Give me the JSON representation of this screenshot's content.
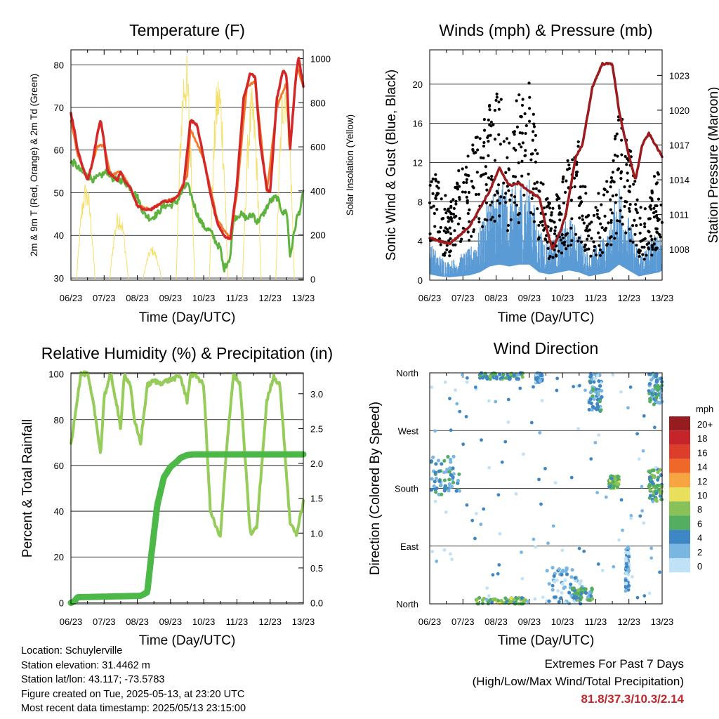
{
  "colors": {
    "temp": "#d42728",
    "temp9m": "#f47a2b",
    "dew": "#5db33e",
    "solar": "#f5e06a",
    "wind": "#5b9bd5",
    "gust": "#000000",
    "pressure": "#9b1b1e",
    "rh": "#96cc5a",
    "precip": "#4cb848",
    "extremes": "#c0282d"
  },
  "chart_data": [
    {
      "id": "temperature",
      "type": "line",
      "title": "Temperature (F)",
      "xlabel": "Time (Day/UTC)",
      "ylabel": "2m & 9m T (Red, Orange) & 2m Td (Green)",
      "y2label": "Solar Insolation (Yellow)",
      "x_ticks": [
        "06/23",
        "07/23",
        "08/23",
        "09/23",
        "10/23",
        "11/23",
        "12/23",
        "13/23"
      ],
      "ylim": [
        29.5,
        83.5
      ],
      "y_ticks": [
        30,
        40,
        50,
        60,
        70,
        80
      ],
      "y2lim": [
        -5,
        1040
      ],
      "y2_ticks": [
        0,
        200,
        400,
        600,
        800,
        1000
      ],
      "grid": "horizontal",
      "series": [
        {
          "name": "2m T",
          "color": "#d42728",
          "x": [
            0,
            0.1,
            0.2,
            0.35,
            0.5,
            0.65,
            0.8,
            0.9,
            1.0,
            1.1,
            1.25,
            1.4,
            1.5,
            1.6,
            1.8,
            1.9,
            2.0,
            2.2,
            2.4,
            2.6,
            2.8,
            3.0,
            3.2,
            3.4,
            3.6,
            3.8,
            4.0,
            4.2,
            4.4,
            4.6,
            4.8,
            5.0,
            5.2,
            5.4,
            5.55,
            5.7,
            5.9,
            6.0,
            6.2,
            6.4,
            6.5,
            6.6,
            6.75,
            6.85,
            7.0
          ],
          "values": [
            68.5,
            65,
            60,
            56,
            53,
            57,
            64,
            67,
            62,
            55,
            54,
            53,
            55,
            53,
            51,
            49,
            47,
            46,
            46,
            47,
            48,
            48,
            49,
            52,
            67,
            66,
            58,
            50,
            43,
            40,
            39,
            52,
            72,
            78,
            77,
            62,
            51,
            50,
            72,
            79,
            77,
            60,
            75,
            82,
            75
          ]
        },
        {
          "name": "9m T",
          "color": "#f47a2b",
          "x": [
            0,
            0.2,
            0.5,
            0.8,
            1.0,
            1.2,
            1.5,
            1.8,
            2.0,
            2.4,
            2.8,
            3.2,
            3.5,
            3.6,
            4.0,
            4.4,
            4.8,
            5.0,
            5.3,
            5.55,
            5.9,
            6.2,
            6.5,
            6.6,
            6.8,
            7.0
          ],
          "values": [
            67,
            59,
            53,
            61,
            61,
            54,
            55,
            51,
            47,
            46,
            48,
            49,
            54,
            65,
            58,
            44,
            39,
            50,
            75,
            76,
            50,
            70,
            76,
            60,
            80,
            75
          ]
        },
        {
          "name": "2m Td",
          "color": "#5db33e",
          "x": [
            0,
            0.1,
            0.3,
            0.5,
            0.7,
            0.9,
            1.1,
            1.3,
            1.5,
            1.7,
            1.9,
            2.0,
            2.2,
            2.4,
            2.6,
            2.8,
            3.0,
            3.2,
            3.4,
            3.5,
            3.6,
            3.8,
            4.0,
            4.2,
            4.4,
            4.5,
            4.6,
            4.8,
            4.9,
            5.1,
            5.3,
            5.5,
            5.6,
            5.8,
            6.0,
            6.2,
            6.4,
            6.5,
            6.6,
            6.8,
            6.9,
            7.0
          ],
          "values": [
            57,
            57,
            55,
            54,
            53,
            54,
            55,
            53,
            53,
            52,
            50,
            49,
            45,
            44,
            45,
            47,
            47,
            48,
            51,
            52,
            50,
            45,
            42,
            41,
            38,
            37,
            32,
            35,
            44,
            45,
            44,
            45,
            43,
            45,
            48,
            49,
            45,
            46,
            35,
            44,
            46,
            50
          ]
        },
        {
          "name": "Solar Insolation",
          "axis": "y2",
          "color": "#f5e06a",
          "peaks": [
            {
              "x": 0.45,
              "value": 450
            },
            {
              "x": 1.45,
              "value": 320
            },
            {
              "x": 2.45,
              "value": 150
            },
            {
              "x": 3.45,
              "value": 1050
            },
            {
              "x": 4.45,
              "value": 950
            },
            {
              "x": 5.45,
              "value": 870
            },
            {
              "x": 6.45,
              "value": 1000
            }
          ]
        }
      ]
    },
    {
      "id": "winds",
      "type": "scatter",
      "title": "Winds (mph) & Pressure (mb)",
      "xlabel": "Time (Day/UTC)",
      "ylabel": "Sonic Wind & Gust (Blue, Black)",
      "y2label": "Station Pressure (Maroon)",
      "x_ticks": [
        "06/23",
        "07/23",
        "08/23",
        "09/23",
        "10/23",
        "11/23",
        "12/23",
        "13/23"
      ],
      "ylim": [
        0,
        23.5
      ],
      "y_ticks": [
        0,
        4,
        8,
        12,
        16,
        20
      ],
      "y2lim": [
        1005.35,
        1025.2
      ],
      "y2_ticks": [
        1008,
        1011,
        1014,
        1017,
        1020,
        1023
      ],
      "grid": "horizontal",
      "series": [
        {
          "name": "Sonic Wind",
          "color": "#5b9bd5",
          "x": [
            0,
            0.3,
            0.6,
            0.9,
            1.2,
            1.5,
            1.8,
            2.1,
            2.4,
            2.7,
            3.0,
            3.3,
            3.6,
            3.9,
            4.2,
            4.5,
            4.8,
            5.1,
            5.4,
            5.7,
            6.0,
            6.3,
            6.6,
            6.9,
            7.0
          ],
          "values": [
            3,
            2,
            1.5,
            2,
            2.5,
            4,
            7,
            8,
            7,
            8,
            8,
            4,
            3,
            4,
            5,
            4,
            2,
            3,
            4,
            8,
            5,
            2,
            3,
            4,
            5
          ]
        },
        {
          "name": "Gust",
          "color": "#000000",
          "x": [
            0,
            0.3,
            0.6,
            0.9,
            1.2,
            1.5,
            1.8,
            2.1,
            2.4,
            2.7,
            3.0,
            3.3,
            3.6,
            3.9,
            4.2,
            4.5,
            4.8,
            5.1,
            5.4,
            5.7,
            6.0,
            6.3,
            6.6,
            6.9,
            7.0
          ],
          "values": [
            10,
            8,
            6,
            9,
            10,
            12,
            14,
            15,
            13,
            15,
            16,
            9,
            6,
            7,
            10,
            11,
            5,
            7,
            8,
            14,
            11,
            6,
            6,
            10,
            12
          ]
        },
        {
          "name": "Station Pressure",
          "axis": "y2",
          "color": "#9b1b1e",
          "x": [
            0,
            0.3,
            0.6,
            0.9,
            1.2,
            1.5,
            1.8,
            2.1,
            2.4,
            2.7,
            3.0,
            3.3,
            3.5,
            3.7,
            3.9,
            4.1,
            4.4,
            4.6,
            4.9,
            5.2,
            5.5,
            5.7,
            6.0,
            6.2,
            6.4,
            6.6,
            6.8,
            7.0
          ],
          "values": [
            1009,
            1008.7,
            1008.5,
            1009.2,
            1010,
            1011.5,
            1013,
            1015,
            1013.5,
            1013.7,
            1013,
            1012.5,
            1010,
            1008,
            1009.3,
            1011,
            1016,
            1017,
            1022,
            1024,
            1024,
            1020,
            1016,
            1014,
            1017,
            1018,
            1017,
            1016
          ]
        }
      ]
    },
    {
      "id": "humidity",
      "type": "line",
      "title": "Relative Humidity (%) & Precipitation (in)",
      "xlabel": "Time (Day/UTC)",
      "ylabel": "Percent & Total Rainfall",
      "x_ticks": [
        "06/23",
        "07/23",
        "08/23",
        "09/23",
        "10/23",
        "11/23",
        "12/23",
        "13/23"
      ],
      "ylim": [
        -0.5,
        100.5
      ],
      "y_ticks": [
        0,
        20,
        40,
        60,
        80,
        100
      ],
      "y2lim": [
        -0.015,
        3.3
      ],
      "y2_ticks": [
        "0.0",
        "0.5",
        "1.0",
        "1.5",
        "2.0",
        "2.5",
        "3.0"
      ],
      "grid": "horizontal",
      "series": [
        {
          "name": "RH",
          "color": "#96cc5a",
          "x": [
            0,
            0.15,
            0.3,
            0.5,
            0.7,
            0.9,
            1.0,
            1.2,
            1.4,
            1.5,
            1.6,
            1.8,
            1.9,
            2.1,
            2.3,
            2.5,
            2.7,
            2.9,
            3.1,
            3.3,
            3.5,
            3.6,
            3.8,
            4.0,
            4.2,
            4.5,
            4.7,
            4.9,
            5.1,
            5.4,
            5.6,
            5.9,
            6.1,
            6.3,
            6.6,
            6.8,
            7.0
          ],
          "values": [
            69,
            85,
            100,
            100,
            85,
            65,
            90,
            100,
            85,
            75,
            100,
            95,
            80,
            70,
            95,
            97,
            96,
            97,
            98,
            99,
            88,
            100,
            99,
            95,
            40,
            28,
            70,
            100,
            95,
            30,
            33,
            88,
            99,
            95,
            35,
            30,
            44
          ]
        },
        {
          "name": "Total Precipitation",
          "axis": "y2",
          "color": "#4cb848",
          "x": [
            0,
            0.1,
            0.2,
            2.1,
            2.3,
            2.45,
            2.6,
            2.8,
            3.0,
            3.2,
            3.3,
            3.5,
            3.7,
            7.0
          ],
          "values": [
            0,
            0.02,
            0.08,
            0.1,
            0.15,
            0.8,
            1.4,
            1.8,
            1.95,
            2.03,
            2.08,
            2.12,
            2.13,
            2.13
          ]
        }
      ]
    },
    {
      "id": "wind_direction",
      "type": "scatter",
      "title": "Wind Direction",
      "xlabel": "Time (Day/UTC)",
      "ylabel": "Direction (Colored By Speed)",
      "x_ticks": [
        "06/23",
        "07/23",
        "08/23",
        "09/23",
        "10/23",
        "11/23",
        "12/23",
        "13/23"
      ],
      "ylim": [
        0,
        360
      ],
      "y_ticks": [
        "North",
        "East",
        "South",
        "West",
        "North"
      ],
      "grid": "horizontal",
      "legend": {
        "title": "mph",
        "labels": [
          "20+",
          "18",
          "16",
          "14",
          "12",
          "10",
          "8",
          "6",
          "4",
          "2",
          "0"
        ],
        "colors": [
          "#971c1f",
          "#c6242b",
          "#dd3e2c",
          "#f0672a",
          "#f7a543",
          "#e8e05c",
          "#88c158",
          "#53ae62",
          "#3e86c4",
          "#79b6e2",
          "#c0e2f6"
        ]
      },
      "clusters": [
        {
          "x": [
            0.0,
            0.9
          ],
          "dir": [
            170,
            230
          ],
          "speed": 4
        },
        {
          "x": [
            1.4,
            2.9
          ],
          "dir": [
            0,
            10
          ],
          "speed": 7
        },
        {
          "x": [
            1.5,
            2.8
          ],
          "dir": [
            350,
            360
          ],
          "speed": 5
        },
        {
          "x": [
            3.2,
            3.4
          ],
          "dir": [
            345,
            360
          ],
          "speed": 3
        },
        {
          "x": [
            3.5,
            4.6
          ],
          "dir": [
            0,
            60
          ],
          "speed": 2
        },
        {
          "x": [
            4.3,
            4.9
          ],
          "dir": [
            5,
            25
          ],
          "speed": 5
        },
        {
          "x": [
            4.8,
            5.2
          ],
          "dir": [
            300,
            360
          ],
          "speed": 3
        },
        {
          "x": [
            5.4,
            5.7
          ],
          "dir": [
            180,
            200
          ],
          "speed": 7
        },
        {
          "x": [
            5.9,
            6.0
          ],
          "dir": [
            20,
            90
          ],
          "speed": 2
        },
        {
          "x": [
            6.6,
            7.0
          ],
          "dir": [
            160,
            210
          ],
          "speed": 6
        },
        {
          "x": [
            6.6,
            7.0
          ],
          "dir": [
            310,
            360
          ],
          "speed": 4
        }
      ]
    }
  ],
  "info": {
    "location": "Location: Schuylerville",
    "elevation": "Station elevation: 31.4462 m",
    "latlon": "Station lat/lon: 43.117; -73.5783",
    "created": "Figure created on Tue, 2025-05-13, at 23:20 UTC",
    "recent": "Most recent data timestamp: 2025/05/13 23:15:00"
  },
  "extremes": {
    "line1": "Extremes For Past 7 Days",
    "line2": "(High/Low/Max Wind/Total Precipitation)",
    "values": "81.8/37.3/10.3/2.14"
  }
}
